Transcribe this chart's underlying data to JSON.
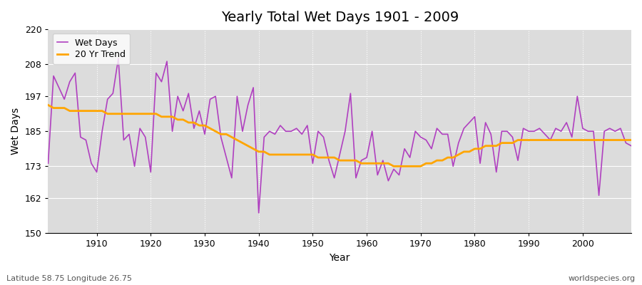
{
  "title": "Yearly Total Wet Days 1901 - 2009",
  "xlabel": "Year",
  "ylabel": "Wet Days",
  "subtitle_left": "Latitude 58.75 Longitude 26.75",
  "subtitle_right": "worldspecies.org",
  "legend_wet": "Wet Days",
  "legend_trend": "20 Yr Trend",
  "wet_color": "#B040C0",
  "trend_color": "#FFA500",
  "background_color": "#DCDCDC",
  "ylim": [
    150,
    220
  ],
  "yticks": [
    150,
    162,
    173,
    185,
    197,
    208,
    220
  ],
  "xlim": [
    1901,
    2009
  ],
  "xticks": [
    1910,
    1920,
    1930,
    1940,
    1950,
    1960,
    1970,
    1980,
    1990,
    2000
  ],
  "years": [
    1901,
    1902,
    1903,
    1904,
    1905,
    1906,
    1907,
    1908,
    1909,
    1910,
    1911,
    1912,
    1913,
    1914,
    1915,
    1916,
    1917,
    1918,
    1919,
    1920,
    1921,
    1922,
    1923,
    1924,
    1925,
    1926,
    1927,
    1928,
    1929,
    1930,
    1931,
    1932,
    1933,
    1934,
    1935,
    1936,
    1937,
    1938,
    1939,
    1940,
    1941,
    1942,
    1943,
    1944,
    1945,
    1946,
    1947,
    1948,
    1949,
    1950,
    1951,
    1952,
    1953,
    1954,
    1955,
    1956,
    1957,
    1958,
    1959,
    1960,
    1961,
    1962,
    1963,
    1964,
    1965,
    1966,
    1967,
    1968,
    1969,
    1970,
    1971,
    1972,
    1973,
    1974,
    1975,
    1976,
    1977,
    1978,
    1979,
    1980,
    1981,
    1982,
    1983,
    1984,
    1985,
    1986,
    1987,
    1988,
    1989,
    1990,
    1991,
    1992,
    1993,
    1994,
    1995,
    1996,
    1997,
    1998,
    1999,
    2000,
    2001,
    2002,
    2003,
    2004,
    2005,
    2006,
    2007,
    2008,
    2009
  ],
  "wet_days": [
    174,
    204,
    200,
    196,
    202,
    205,
    183,
    182,
    174,
    171,
    185,
    196,
    198,
    210,
    182,
    184,
    173,
    186,
    183,
    171,
    205,
    202,
    209,
    185,
    197,
    192,
    198,
    186,
    192,
    184,
    196,
    197,
    183,
    176,
    169,
    197,
    185,
    194,
    200,
    157,
    183,
    185,
    184,
    187,
    185,
    185,
    186,
    184,
    187,
    174,
    185,
    183,
    175,
    169,
    177,
    185,
    198,
    169,
    175,
    176,
    185,
    170,
    175,
    168,
    172,
    170,
    179,
    176,
    185,
    183,
    182,
    179,
    186,
    184,
    184,
    173,
    181,
    186,
    188,
    190,
    174,
    188,
    184,
    171,
    185,
    185,
    183,
    175,
    186,
    185,
    185,
    186,
    184,
    182,
    186,
    185,
    188,
    183,
    197,
    186,
    185,
    185,
    163,
    185,
    186,
    185,
    186,
    181,
    180
  ],
  "trend_years": [
    1901,
    1902,
    1903,
    1904,
    1905,
    1906,
    1907,
    1908,
    1909,
    1910,
    1911,
    1912,
    1913,
    1914,
    1915,
    1916,
    1917,
    1918,
    1919,
    1920,
    1921,
    1922,
    1923,
    1924,
    1925,
    1926,
    1927,
    1928,
    1929,
    1930,
    1931,
    1932,
    1933,
    1934,
    1935,
    1936,
    1937,
    1938,
    1939,
    1940,
    1941,
    1942,
    1943,
    1944,
    1945,
    1946,
    1947,
    1948,
    1949,
    1950,
    1951,
    1952,
    1953,
    1954,
    1955,
    1956,
    1957,
    1958,
    1959,
    1960,
    1961,
    1962,
    1963,
    1964,
    1965,
    1966,
    1967,
    1968,
    1969,
    1970,
    1971,
    1972,
    1973,
    1974,
    1975,
    1976,
    1977,
    1978,
    1979,
    1980,
    1981,
    1982,
    1983,
    1984,
    1985,
    1986,
    1987,
    1988,
    1989,
    1990,
    1991,
    1992,
    1993,
    1994,
    1995,
    1996,
    1997,
    1998,
    1999,
    2000,
    2001,
    2002,
    2003,
    2004,
    2005,
    2006,
    2007,
    2008,
    2009
  ],
  "trend_values": [
    194,
    193,
    193,
    193,
    192,
    192,
    192,
    192,
    192,
    192,
    192,
    191,
    191,
    191,
    191,
    191,
    191,
    191,
    191,
    191,
    191,
    190,
    190,
    190,
    189,
    189,
    188,
    188,
    187,
    187,
    186,
    185,
    184,
    184,
    183,
    182,
    181,
    180,
    179,
    178,
    178,
    177,
    177,
    177,
    177,
    177,
    177,
    177,
    177,
    177,
    176,
    176,
    176,
    176,
    175,
    175,
    175,
    175,
    174,
    174,
    174,
    174,
    174,
    174,
    173,
    173,
    173,
    173,
    173,
    173,
    174,
    174,
    175,
    175,
    176,
    176,
    177,
    178,
    178,
    179,
    179,
    180,
    180,
    180,
    181,
    181,
    181,
    182,
    182,
    182,
    182,
    182,
    182,
    182,
    182,
    182,
    182,
    182,
    182,
    182,
    182,
    182,
    182,
    182,
    182,
    182,
    182,
    182,
    182
  ]
}
